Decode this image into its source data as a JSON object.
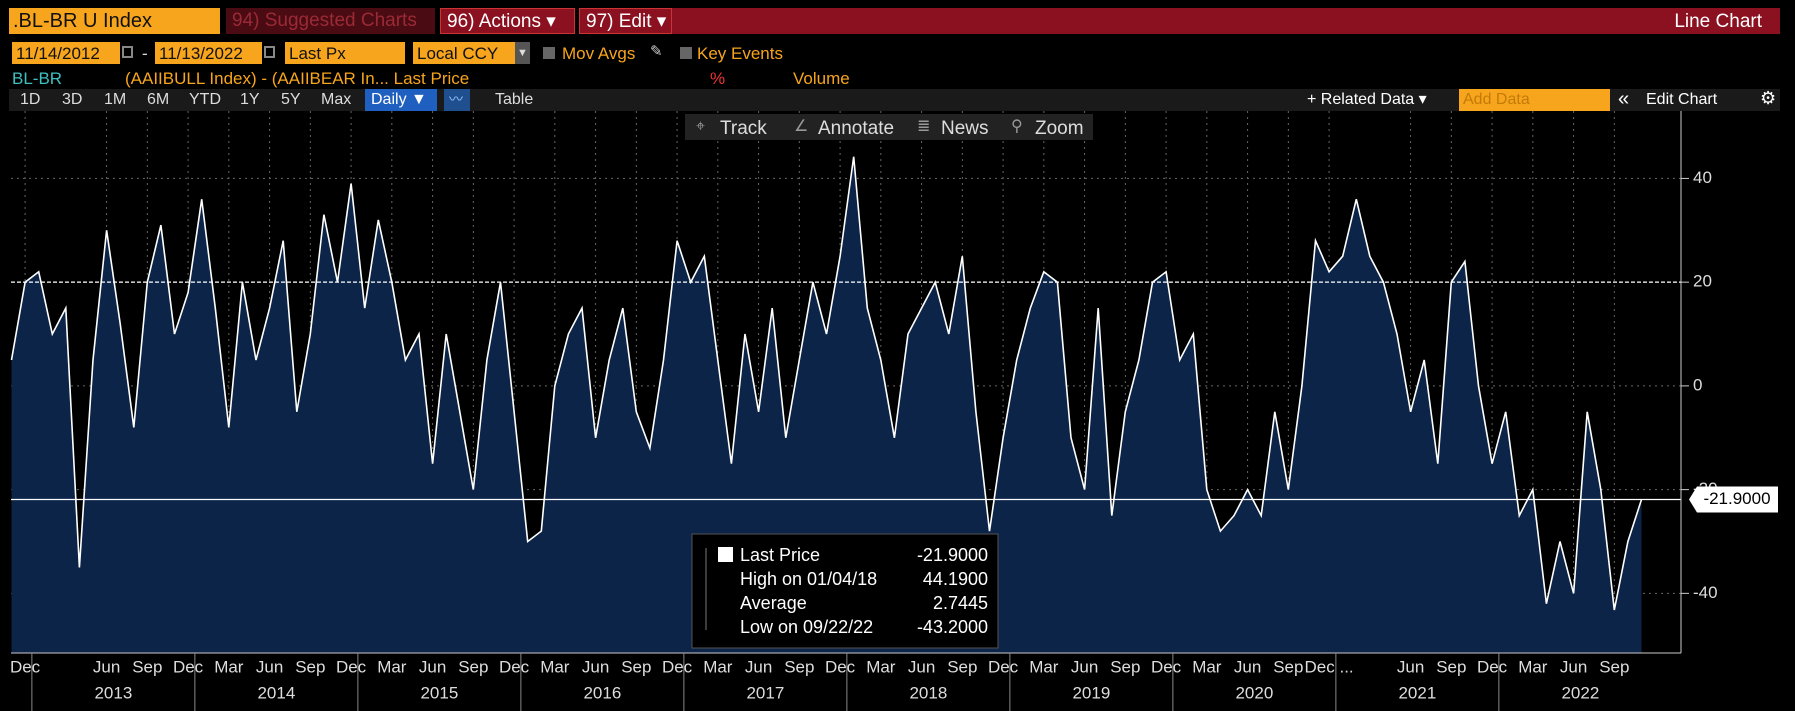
{
  "header": {
    "ticker": ".BL-BR U Index",
    "suggested": "94) Suggested Charts",
    "actions": "96) Actions ▾",
    "edit": "97) Edit ▾",
    "chart_kind": "Line Chart"
  },
  "controls": {
    "start": "11/14/2012",
    "dash": "-",
    "end": "11/13/2022",
    "field": "Last Px",
    "currency": "Local CCY",
    "mov_avgs": "Mov Avgs",
    "key_events": "Key Events"
  },
  "legend_row": {
    "security": "BL-BR",
    "description": "(AAIIBULL Index) - (AAIIBEAR In... Last Price",
    "units": "%",
    "volume": "Volume"
  },
  "toolbar": {
    "periods": [
      "1D",
      "3D",
      "1M",
      "6M",
      "YTD",
      "1Y",
      "5Y",
      "Max"
    ],
    "frequency": "Daily ▼",
    "table": "Table",
    "related": "+ Related Data ▾",
    "add_data": "Add Data",
    "collapse": "«",
    "edit_chart": "Edit Chart"
  },
  "chart_tools": [
    "Track",
    "Annotate",
    "News",
    "Zoom"
  ],
  "chart_data": {
    "type": "area",
    "x": [
      "2012-11",
      "2012-12",
      "2013-01",
      "2013-02",
      "2013-03",
      "2013-04",
      "2013-05",
      "2013-06",
      "2013-07",
      "2013-08",
      "2013-09",
      "2013-10",
      "2013-11",
      "2013-12",
      "2014-01",
      "2014-02",
      "2014-03",
      "2014-04",
      "2014-05",
      "2014-06",
      "2014-07",
      "2014-08",
      "2014-09",
      "2014-10",
      "2014-11",
      "2014-12",
      "2015-01",
      "2015-02",
      "2015-03",
      "2015-04",
      "2015-05",
      "2015-06",
      "2015-07",
      "2015-08",
      "2015-09",
      "2015-10",
      "2015-11",
      "2015-12",
      "2016-01",
      "2016-02",
      "2016-03",
      "2016-04",
      "2016-05",
      "2016-06",
      "2016-07",
      "2016-08",
      "2016-09",
      "2016-10",
      "2016-11",
      "2016-12",
      "2017-01",
      "2017-02",
      "2017-03",
      "2017-04",
      "2017-05",
      "2017-06",
      "2017-07",
      "2017-08",
      "2017-09",
      "2017-10",
      "2017-11",
      "2017-12",
      "2018-01",
      "2018-02",
      "2018-03",
      "2018-04",
      "2018-05",
      "2018-06",
      "2018-07",
      "2018-08",
      "2018-09",
      "2018-10",
      "2018-11",
      "2018-12",
      "2019-01",
      "2019-02",
      "2019-03",
      "2019-04",
      "2019-05",
      "2019-06",
      "2019-07",
      "2019-08",
      "2019-09",
      "2019-10",
      "2019-11",
      "2019-12",
      "2020-01",
      "2020-02",
      "2020-03",
      "2020-04",
      "2020-05",
      "2020-06",
      "2020-07",
      "2020-08",
      "2020-09",
      "2020-10",
      "2020-11",
      "2020-12",
      "2021-01",
      "2021-02",
      "2021-03",
      "2021-04",
      "2021-05",
      "2021-06",
      "2021-07",
      "2021-08",
      "2021-09",
      "2021-10",
      "2021-11",
      "2021-12",
      "2022-01",
      "2022-02",
      "2022-03",
      "2022-04",
      "2022-05",
      "2022-06",
      "2022-07",
      "2022-08",
      "2022-09",
      "2022-10",
      "2022-11"
    ],
    "series": [
      {
        "name": "Last Price",
        "color": "#ffffff",
        "fill": "#0b2447",
        "values": [
          5,
          20,
          22,
          10,
          15,
          -35,
          5,
          30,
          12,
          -8,
          20,
          31,
          10,
          18,
          36,
          15,
          -8,
          20,
          5,
          15,
          28,
          -5,
          10,
          33,
          20,
          39,
          15,
          32,
          20,
          5,
          10,
          -15,
          10,
          -5,
          -20,
          5,
          20,
          -5,
          -30,
          -28,
          0,
          10,
          15,
          -10,
          5,
          15,
          -5,
          -12,
          5,
          28,
          20,
          25,
          5,
          -15,
          10,
          -5,
          15,
          -10,
          5,
          20,
          10,
          25,
          44.19,
          15,
          5,
          -10,
          10,
          15,
          20,
          10,
          25,
          -5,
          -28,
          -10,
          5,
          15,
          22,
          20,
          -10,
          -20,
          15,
          -25,
          -5,
          5,
          20,
          22,
          5,
          10,
          -20,
          -28,
          -25,
          -20,
          -25,
          -5,
          -20,
          0,
          28,
          22,
          25,
          36,
          25,
          20,
          10,
          -5,
          5,
          -15,
          20,
          24,
          0,
          -15,
          -5,
          -25,
          -20,
          -42,
          -30,
          -40,
          -5,
          -20,
          -43.2,
          -30,
          -21.9
        ]
      }
    ],
    "ylim": [
      -51.5,
      53
    ],
    "yticks": [
      -40,
      -20,
      0,
      20,
      40
    ],
    "grid": true,
    "reference_line": 20,
    "xticks": [
      {
        "value": "2012-12",
        "label": "Dec"
      },
      {
        "value": "2013-06",
        "label": "Jun"
      },
      {
        "value": "2013-09",
        "label": "Sep"
      },
      {
        "value": "2013-12",
        "label": "Dec"
      },
      {
        "value": "2014-03",
        "label": "Mar"
      },
      {
        "value": "2014-06",
        "label": "Jun"
      },
      {
        "value": "2014-09",
        "label": "Sep"
      },
      {
        "value": "2014-12",
        "label": "Dec"
      },
      {
        "value": "2015-03",
        "label": "Mar"
      },
      {
        "value": "2015-06",
        "label": "Jun"
      },
      {
        "value": "2015-09",
        "label": "Sep"
      },
      {
        "value": "2015-12",
        "label": "Dec"
      },
      {
        "value": "2016-03",
        "label": "Mar"
      },
      {
        "value": "2016-06",
        "label": "Jun"
      },
      {
        "value": "2016-09",
        "label": "Sep"
      },
      {
        "value": "2016-12",
        "label": "Dec"
      },
      {
        "value": "2017-03",
        "label": "Mar"
      },
      {
        "value": "2017-06",
        "label": "Jun"
      },
      {
        "value": "2017-09",
        "label": "Sep"
      },
      {
        "value": "2017-12",
        "label": "Dec"
      },
      {
        "value": "2018-03",
        "label": "Mar"
      },
      {
        "value": "2018-06",
        "label": "Jun"
      },
      {
        "value": "2018-09",
        "label": "Sep"
      },
      {
        "value": "2018-12",
        "label": "Dec"
      },
      {
        "value": "2019-03",
        "label": "Mar"
      },
      {
        "value": "2019-06",
        "label": "Jun"
      },
      {
        "value": "2019-09",
        "label": "Sep"
      },
      {
        "value": "2019-12",
        "label": "Dec"
      },
      {
        "value": "2020-03",
        "label": "Mar"
      },
      {
        "value": "2020-06",
        "label": "Jun"
      },
      {
        "value": "2020-09",
        "label": "Sep"
      },
      {
        "value": "2020-12",
        "label": "Dec ..."
      },
      {
        "value": "2021-06",
        "label": "Jun"
      },
      {
        "value": "2021-09",
        "label": "Sep"
      },
      {
        "value": "2021-12",
        "label": "Dec"
      },
      {
        "value": "2022-03",
        "label": "Mar"
      },
      {
        "value": "2022-06",
        "label": "Jun"
      },
      {
        "value": "2022-09",
        "label": "Sep"
      }
    ],
    "year_labels": [
      "2013",
      "2014",
      "2015",
      "2016",
      "2017",
      "2018",
      "2019",
      "2020",
      "2021",
      "2022"
    ],
    "stats": [
      {
        "label": "Last Price",
        "value": -21.9,
        "value_label": "-21.9000"
      },
      {
        "label": "High on 01/04/18",
        "value": 44.19,
        "value_label": "44.1900"
      },
      {
        "label": "Average",
        "value": 2.7445
      },
      {
        "label": "Low on 09/22/22",
        "value": -43.2,
        "value_label": "-43.2000"
      }
    ]
  }
}
